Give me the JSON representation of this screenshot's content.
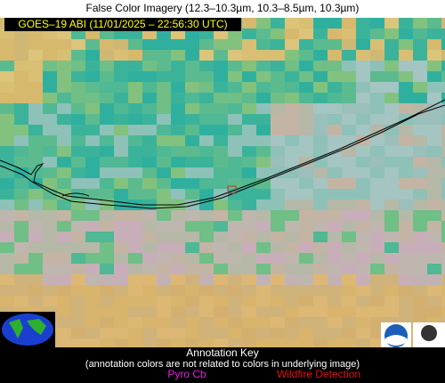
{
  "header": {
    "title": "False Color Imagery (12.3–10.3µm, 10.3–8.5µm, 10.3µm)",
    "satellite_label": "GOES–19 ABI (11/01/2025 – 22:56:30 UTC)"
  },
  "annotation_key": {
    "title": "Annotation Key",
    "note": "(annotation colors are not related to colors in underlying image)",
    "items": [
      "Pyro Cb",
      "Wildfire Detection"
    ]
  }
}
